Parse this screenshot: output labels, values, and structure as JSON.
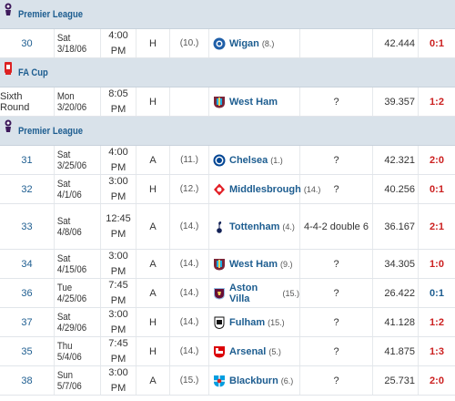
{
  "colors": {
    "loss": "#cc2020",
    "win": "#1d5d90",
    "draw": "#6c9a00",
    "link": "#1d5d90",
    "header_bg": "#d9e2ea"
  },
  "rows": [
    {
      "type": "comp",
      "name": "Premier League",
      "logo": "premier-league-logo"
    },
    {
      "type": "match",
      "round": "30",
      "round_link": true,
      "date": "Sat 3/18/06",
      "time": "4:00 PM",
      "venue": "H",
      "rank": "(10.)",
      "opp": "Wigan",
      "opp_rank": "(8.)",
      "opp_icon": "wigan-crest-icon",
      "system": "",
      "att": "42.444",
      "result": "0:1",
      "outcome": "loss"
    },
    {
      "type": "comp",
      "name": "FA Cup",
      "logo": "fa-cup-logo"
    },
    {
      "type": "match",
      "round": "Sixth Round",
      "round_link": false,
      "date": "Mon 3/20/06",
      "time": "8:05 PM",
      "venue": "H",
      "rank": "",
      "opp": "West Ham",
      "opp_rank": "",
      "opp_icon": "west-ham-crest-icon",
      "system": "?",
      "att": "39.357",
      "result": "1:2",
      "outcome": "loss"
    },
    {
      "type": "comp",
      "name": "Premier League",
      "logo": "premier-league-logo"
    },
    {
      "type": "match",
      "round": "31",
      "round_link": true,
      "date": "Sat 3/25/06",
      "time": "4:00 PM",
      "venue": "A",
      "rank": "(11.)",
      "opp": "Chelsea",
      "opp_rank": "(1.)",
      "opp_icon": "chelsea-crest-icon",
      "system": "?",
      "att": "42.321",
      "result": "2:0",
      "outcome": "loss"
    },
    {
      "type": "match",
      "round": "32",
      "round_link": true,
      "date": "Sat 4/1/06",
      "time": "3:00 PM",
      "venue": "H",
      "rank": "(12.)",
      "opp": "Middlesbrough",
      "opp_rank": "(14.)",
      "opp_icon": "middlesbrough-crest-icon",
      "system": "?",
      "att": "40.256",
      "result": "0:1",
      "outcome": "loss"
    },
    {
      "type": "match",
      "round": "33",
      "round_link": true,
      "date": "Sat 4/8/06",
      "time": "12:45 PM",
      "venue": "A",
      "rank": "(14.)",
      "opp": "Tottenham",
      "opp_rank": "(4.)",
      "opp_icon": "tottenham-crest-icon",
      "system": "4-4-2 double 6",
      "att": "36.167",
      "result": "2:1",
      "outcome": "loss",
      "tall": true
    },
    {
      "type": "match",
      "round": "34",
      "round_link": true,
      "date": "Sat 4/15/06",
      "time": "3:00 PM",
      "venue": "A",
      "rank": "(14.)",
      "opp": "West Ham",
      "opp_rank": "(9.)",
      "opp_icon": "west-ham-crest-icon",
      "system": "?",
      "att": "34.305",
      "result": "1:0",
      "outcome": "loss"
    },
    {
      "type": "match",
      "round": "36",
      "round_link": true,
      "date": "Tue 4/25/06",
      "time": "7:45 PM",
      "venue": "A",
      "rank": "(14.)",
      "opp": "Aston Villa",
      "opp_rank": "(15.)",
      "opp_icon": "aston-villa-crest-icon",
      "system": "?",
      "att": "26.422",
      "result": "0:1",
      "outcome": "win"
    },
    {
      "type": "match",
      "round": "37",
      "round_link": true,
      "date": "Sat 4/29/06",
      "time": "3:00 PM",
      "venue": "H",
      "rank": "(14.)",
      "opp": "Fulham",
      "opp_rank": "(15.)",
      "opp_icon": "fulham-crest-icon",
      "system": "?",
      "att": "41.128",
      "result": "1:2",
      "outcome": "loss"
    },
    {
      "type": "match",
      "round": "35",
      "round_link": true,
      "date": "Thu 5/4/06",
      "time": "7:45 PM",
      "venue": "H",
      "rank": "(14.)",
      "opp": "Arsenal",
      "opp_rank": "(5.)",
      "opp_icon": "arsenal-crest-icon",
      "system": "?",
      "att": "41.875",
      "result": "1:3",
      "outcome": "loss"
    },
    {
      "type": "match",
      "round": "38",
      "round_link": true,
      "date": "Sun 5/7/06",
      "time": "3:00 PM",
      "venue": "A",
      "rank": "(15.)",
      "opp": "Blackburn",
      "opp_rank": "(6.)",
      "opp_icon": "blackburn-crest-icon",
      "system": "?",
      "att": "25.731",
      "result": "2:0",
      "outcome": "loss"
    }
  ]
}
